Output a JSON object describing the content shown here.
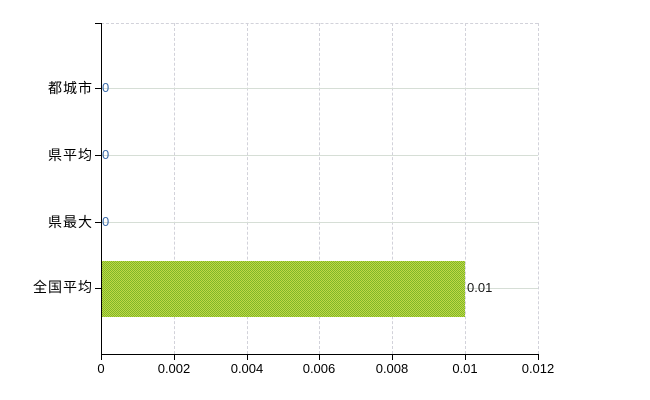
{
  "chart_data": {
    "type": "bar",
    "orientation": "horizontal",
    "title": "",
    "xlabel": "",
    "ylabel": "",
    "categories": [
      "都城市",
      "県平均",
      "県最大",
      "全国平均"
    ],
    "values": [
      0,
      0,
      0,
      0.01
    ],
    "value_labels": [
      "0",
      "0",
      "0",
      "0.01"
    ],
    "xlim": [
      0,
      0.012
    ],
    "x_ticks": [
      0,
      0.002,
      0.004,
      0.006,
      0.008,
      0.01,
      0.012
    ],
    "x_tick_labels": [
      "0",
      "0.002",
      "0.004",
      "0.006",
      "0.008",
      "0.01",
      "0.012"
    ],
    "grid": true,
    "legend": false,
    "colors": {
      "background": "#ffffff",
      "axis": "#000000",
      "grid_horizontal": "#d6ded6",
      "grid_vertical": "#d2d2da",
      "bar_light": "#c0d845",
      "bar_dark": "#7eb729",
      "zero_value_label": "#3a6aa8",
      "bar_value_label": "#1a1a1a"
    }
  }
}
